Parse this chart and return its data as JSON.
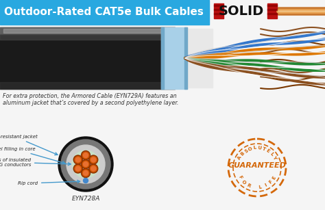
{
  "title": "Outdoor-Rated CAT5e Bulk Cables",
  "title_bg": "#29a8e0",
  "title_color": "#ffffff",
  "solid_text": "SOLID",
  "bg_color": "#f5f5f5",
  "caption": "For extra protection, the Armored Cable (EYN729A) features an\naluminum jacket that’s covered by a second polyethylene layer.",
  "model_label": "EYN728A",
  "guaranteed_color": "#d4680a",
  "cable_jacket_dark": "#1a1a1a",
  "cable_jacket_mid": "#444444",
  "cable_jacket_light": "#888888",
  "cable_shield_color": "#a8d0e8",
  "cable_inner_color": "#d8d8d8",
  "cross_section_outer": "#111111",
  "cross_section_gray": "#777777",
  "cross_section_light": "#cccccc",
  "cross_section_gel": "#c8e0c8",
  "conductor_dark": "#8B3000",
  "conductor_mid": "#cc5500",
  "conductor_light": "#e87030",
  "rip_cord_color": "#4488cc",
  "arrow_color": "#4499cc",
  "label_color": "#222222",
  "solid_red": "#bb1111",
  "solid_dark": "#111111",
  "wire_brown": "#8B5020",
  "wire_blue": "#3377cc",
  "wire_orange": "#dd7700",
  "wire_green": "#228833",
  "wire_white": "#dddddd",
  "wire_copper": "#c87830"
}
